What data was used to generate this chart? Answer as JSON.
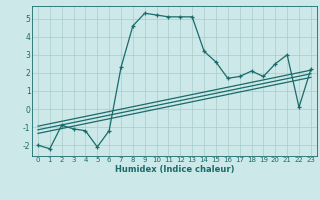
{
  "title": "",
  "xlabel": "Humidex (Indice chaleur)",
  "bg_color": "#cce8e8",
  "grid_color": "#aacccc",
  "line_color": "#1a6b6b",
  "xlim": [
    -0.5,
    23.5
  ],
  "ylim": [
    -2.6,
    5.7
  ],
  "xticks": [
    0,
    1,
    2,
    3,
    4,
    5,
    6,
    7,
    8,
    9,
    10,
    11,
    12,
    13,
    14,
    15,
    16,
    17,
    18,
    19,
    20,
    21,
    22,
    23
  ],
  "yticks": [
    -2,
    -1,
    0,
    1,
    2,
    3,
    4,
    5
  ],
  "main_x": [
    0,
    1,
    2,
    3,
    4,
    5,
    6,
    7,
    8,
    9,
    10,
    11,
    12,
    13,
    14,
    15,
    16,
    17,
    18,
    19,
    20,
    21,
    22,
    23
  ],
  "main_y": [
    -2.0,
    -2.2,
    -0.9,
    -1.1,
    -1.2,
    -2.1,
    -1.2,
    2.3,
    4.6,
    5.3,
    5.2,
    5.1,
    5.1,
    5.1,
    3.2,
    2.6,
    1.7,
    1.8,
    2.1,
    1.8,
    2.5,
    3.0,
    0.1,
    2.2
  ],
  "trend1_x": [
    0,
    23
  ],
  "trend1_y": [
    -1.35,
    1.75
  ],
  "trend2_x": [
    0,
    23
  ],
  "trend2_y": [
    -1.15,
    1.95
  ],
  "trend3_x": [
    0,
    23
  ],
  "trend3_y": [
    -0.95,
    2.15
  ]
}
